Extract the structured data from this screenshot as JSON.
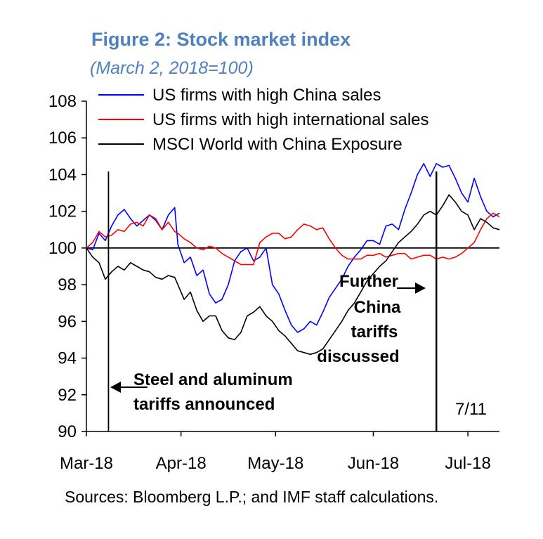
{
  "chart_data": {
    "type": "line",
    "title": "Figure 2: Stock market index",
    "subtitle": "(March 2, 2018=100)",
    "source": "Sources: Bloomberg L.P.; and IMF staff calculations.",
    "ylim": [
      90,
      108
    ],
    "yticks": [
      90,
      92,
      94,
      96,
      98,
      100,
      102,
      104,
      106,
      108
    ],
    "xlim": [
      0,
      131
    ],
    "xticks": [
      {
        "label": "Mar-18",
        "x": 0
      },
      {
        "label": "Apr-18",
        "x": 30
      },
      {
        "label": "May-18",
        "x": 60
      },
      {
        "label": "Jun-18",
        "x": 91
      },
      {
        "label": "Jul-18",
        "x": 121
      }
    ],
    "reference_line": 100,
    "date_label": "7/11",
    "series": [
      {
        "name": "US firms with high China sales",
        "color": "#0000ff",
        "points": [
          [
            0,
            100
          ],
          [
            2,
            99.9
          ],
          [
            4,
            100.8
          ],
          [
            6,
            100.4
          ],
          [
            8,
            101.2
          ],
          [
            10,
            101.8
          ],
          [
            12,
            102.1
          ],
          [
            14,
            101.6
          ],
          [
            16,
            101.2
          ],
          [
            18,
            101.5
          ],
          [
            20,
            101.8
          ],
          [
            22,
            101.5
          ],
          [
            24,
            101.0
          ],
          [
            26,
            101.8
          ],
          [
            28,
            102.2
          ],
          [
            29,
            100.2
          ],
          [
            31,
            99.2
          ],
          [
            33,
            99.5
          ],
          [
            35,
            98.5
          ],
          [
            37,
            98.8
          ],
          [
            39,
            97.5
          ],
          [
            41,
            97.0
          ],
          [
            43,
            97.2
          ],
          [
            45,
            98.0
          ],
          [
            47,
            99.3
          ],
          [
            49,
            99.8
          ],
          [
            51,
            100.0
          ],
          [
            53,
            99.3
          ],
          [
            55,
            99.5
          ],
          [
            57,
            100.0
          ],
          [
            59,
            98.0
          ],
          [
            61,
            97.5
          ],
          [
            63,
            96.6
          ],
          [
            65,
            95.8
          ],
          [
            67,
            95.4
          ],
          [
            69,
            95.6
          ],
          [
            71,
            96.0
          ],
          [
            73,
            95.8
          ],
          [
            75,
            96.5
          ],
          [
            77,
            97.3
          ],
          [
            79,
            97.8
          ],
          [
            81,
            98.3
          ],
          [
            83,
            99.0
          ],
          [
            85,
            99.5
          ],
          [
            87,
            99.9
          ],
          [
            89,
            100.4
          ],
          [
            91,
            100.4
          ],
          [
            93,
            100.2
          ],
          [
            95,
            101.2
          ],
          [
            97,
            101.3
          ],
          [
            99,
            101.0
          ],
          [
            101,
            102.1
          ],
          [
            103,
            103.0
          ],
          [
            105,
            104.0
          ],
          [
            107,
            104.6
          ],
          [
            109,
            103.9
          ],
          [
            111,
            104.6
          ],
          [
            113,
            104.4
          ],
          [
            115,
            104.5
          ],
          [
            117,
            103.8
          ],
          [
            119,
            103.0
          ],
          [
            121,
            102.5
          ],
          [
            123,
            103.8
          ],
          [
            125,
            102.8
          ],
          [
            127,
            102.0
          ],
          [
            129,
            101.7
          ],
          [
            131,
            101.9
          ]
        ]
      },
      {
        "name": "US firms with high international sales",
        "color": "#ff0000",
        "points": [
          [
            0,
            100
          ],
          [
            2,
            100.3
          ],
          [
            4,
            100.9
          ],
          [
            6,
            100.6
          ],
          [
            8,
            100.7
          ],
          [
            10,
            101.0
          ],
          [
            12,
            100.9
          ],
          [
            14,
            101.3
          ],
          [
            16,
            101.4
          ],
          [
            18,
            101.2
          ],
          [
            20,
            101.8
          ],
          [
            22,
            101.6
          ],
          [
            24,
            101.0
          ],
          [
            26,
            101.4
          ],
          [
            28,
            100.9
          ],
          [
            29,
            100.8
          ],
          [
            31,
            100.5
          ],
          [
            33,
            100.3
          ],
          [
            35,
            100.0
          ],
          [
            37,
            99.9
          ],
          [
            39,
            100.1
          ],
          [
            41,
            100.0
          ],
          [
            43,
            99.7
          ],
          [
            45,
            99.5
          ],
          [
            47,
            99.3
          ],
          [
            49,
            99.1
          ],
          [
            51,
            99.1
          ],
          [
            53,
            99.1
          ],
          [
            55,
            100.3
          ],
          [
            57,
            100.6
          ],
          [
            59,
            100.8
          ],
          [
            61,
            100.8
          ],
          [
            63,
            100.5
          ],
          [
            65,
            100.6
          ],
          [
            67,
            101.0
          ],
          [
            69,
            101.3
          ],
          [
            71,
            101.2
          ],
          [
            73,
            101.0
          ],
          [
            75,
            101.1
          ],
          [
            77,
            100.5
          ],
          [
            79,
            100.0
          ],
          [
            81,
            99.6
          ],
          [
            83,
            99.4
          ],
          [
            85,
            99.4
          ],
          [
            87,
            99.4
          ],
          [
            89,
            99.6
          ],
          [
            91,
            99.6
          ],
          [
            93,
            99.7
          ],
          [
            95,
            99.5
          ],
          [
            97,
            99.6
          ],
          [
            99,
            99.7
          ],
          [
            101,
            99.7
          ],
          [
            103,
            99.4
          ],
          [
            105,
            99.5
          ],
          [
            107,
            99.6
          ],
          [
            109,
            99.6
          ],
          [
            111,
            99.4
          ],
          [
            113,
            99.5
          ],
          [
            115,
            99.4
          ],
          [
            117,
            99.5
          ],
          [
            119,
            99.7
          ],
          [
            121,
            100.0
          ],
          [
            123,
            100.3
          ],
          [
            125,
            101.0
          ],
          [
            127,
            101.6
          ],
          [
            129,
            101.9
          ],
          [
            131,
            101.7
          ]
        ]
      },
      {
        "name": "MSCI World with China Exposure",
        "color": "#000000",
        "points": [
          [
            0,
            100
          ],
          [
            2,
            99.5
          ],
          [
            4,
            99.2
          ],
          [
            6,
            98.3
          ],
          [
            8,
            98.7
          ],
          [
            10,
            99.0
          ],
          [
            12,
            98.8
          ],
          [
            14,
            99.2
          ],
          [
            16,
            99.0
          ],
          [
            18,
            98.8
          ],
          [
            20,
            98.7
          ],
          [
            22,
            98.4
          ],
          [
            24,
            98.3
          ],
          [
            26,
            98.5
          ],
          [
            28,
            98.4
          ],
          [
            29,
            98.0
          ],
          [
            31,
            97.2
          ],
          [
            33,
            97.6
          ],
          [
            35,
            96.6
          ],
          [
            37,
            96.0
          ],
          [
            39,
            96.3
          ],
          [
            41,
            96.3
          ],
          [
            43,
            95.5
          ],
          [
            45,
            95.1
          ],
          [
            47,
            95.0
          ],
          [
            49,
            95.4
          ],
          [
            51,
            96.3
          ],
          [
            53,
            96.5
          ],
          [
            55,
            96.8
          ],
          [
            57,
            96.3
          ],
          [
            59,
            96.0
          ],
          [
            61,
            95.5
          ],
          [
            63,
            95.2
          ],
          [
            65,
            94.8
          ],
          [
            67,
            94.4
          ],
          [
            69,
            94.3
          ],
          [
            71,
            94.2
          ],
          [
            73,
            94.3
          ],
          [
            75,
            94.5
          ],
          [
            77,
            95.0
          ],
          [
            79,
            95.5
          ],
          [
            81,
            96.0
          ],
          [
            83,
            96.6
          ],
          [
            85,
            97.0
          ],
          [
            87,
            97.6
          ],
          [
            89,
            98.2
          ],
          [
            91,
            98.6
          ],
          [
            93,
            99.0
          ],
          [
            95,
            99.3
          ],
          [
            97,
            99.8
          ],
          [
            99,
            100.3
          ],
          [
            101,
            100.6
          ],
          [
            103,
            100.9
          ],
          [
            105,
            101.3
          ],
          [
            107,
            101.8
          ],
          [
            109,
            102.0
          ],
          [
            111,
            101.8
          ],
          [
            113,
            102.3
          ],
          [
            115,
            102.9
          ],
          [
            117,
            102.5
          ],
          [
            119,
            102.0
          ],
          [
            121,
            101.8
          ],
          [
            123,
            101.0
          ],
          [
            125,
            101.6
          ],
          [
            127,
            101.4
          ],
          [
            129,
            101.1
          ],
          [
            131,
            101.0
          ]
        ]
      }
    ],
    "annotations": [
      {
        "lines": [
          "Steel and aluminum",
          "tariffs announced"
        ],
        "event_x": 7
      },
      {
        "lines": [
          "Further",
          "China",
          "tariffs",
          "discussed"
        ],
        "event_x": 111
      }
    ]
  }
}
